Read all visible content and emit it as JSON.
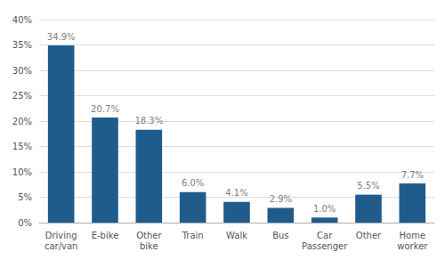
{
  "chart_data": {
    "type": "bar",
    "categories": [
      "Driving\ncar/van",
      "E-bike",
      "Other\nbike",
      "Train",
      "Walk",
      "Bus",
      "Car\nPassenger",
      "Other",
      "Home\nworker"
    ],
    "values": [
      34.9,
      20.7,
      18.3,
      6.0,
      4.1,
      2.9,
      1.0,
      5.5,
      7.7
    ],
    "value_labels": [
      "34.9%",
      "20.7%",
      "18.3%",
      "6.0%",
      "4.1%",
      "2.9%",
      "1.0%",
      "5.5%",
      "7.7%"
    ],
    "data_labels": true,
    "color": "#1F5C8B",
    "ylim": [
      0,
      40
    ],
    "yticks": [
      {
        "value": 0,
        "label": "0%"
      },
      {
        "value": 5,
        "label": "5%"
      },
      {
        "value": 10,
        "label": "10%"
      },
      {
        "value": 15,
        "label": "15%"
      },
      {
        "value": 20,
        "label": "20%"
      },
      {
        "value": 25,
        "label": "25%"
      },
      {
        "value": 30,
        "label": "30%"
      },
      {
        "value": 35,
        "label": "35%"
      },
      {
        "value": 40,
        "label": "40%"
      }
    ],
    "grid": true
  }
}
